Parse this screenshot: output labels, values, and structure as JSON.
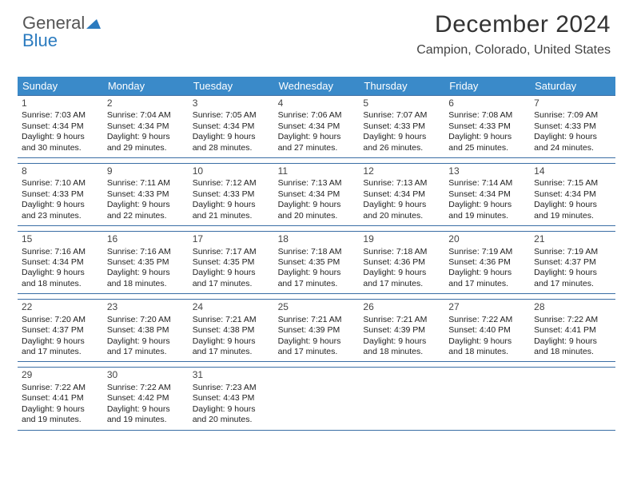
{
  "logo": {
    "text1": "General",
    "text2": "Blue"
  },
  "header": {
    "month_title": "December 2024",
    "location": "Campion, Colorado, United States"
  },
  "colors": {
    "header_bg": "#3a8ac9",
    "header_text": "#ffffff",
    "rule": "#3a6ea5",
    "body_text": "#222222",
    "logo_gray": "#555555",
    "logo_blue": "#2b7bbf"
  },
  "weekdays": [
    "Sunday",
    "Monday",
    "Tuesday",
    "Wednesday",
    "Thursday",
    "Friday",
    "Saturday"
  ],
  "days": [
    {
      "n": 1,
      "sr": "7:03 AM",
      "ss": "4:34 PM",
      "dl": "9 hours and 30 minutes."
    },
    {
      "n": 2,
      "sr": "7:04 AM",
      "ss": "4:34 PM",
      "dl": "9 hours and 29 minutes."
    },
    {
      "n": 3,
      "sr": "7:05 AM",
      "ss": "4:34 PM",
      "dl": "9 hours and 28 minutes."
    },
    {
      "n": 4,
      "sr": "7:06 AM",
      "ss": "4:34 PM",
      "dl": "9 hours and 27 minutes."
    },
    {
      "n": 5,
      "sr": "7:07 AM",
      "ss": "4:33 PM",
      "dl": "9 hours and 26 minutes."
    },
    {
      "n": 6,
      "sr": "7:08 AM",
      "ss": "4:33 PM",
      "dl": "9 hours and 25 minutes."
    },
    {
      "n": 7,
      "sr": "7:09 AM",
      "ss": "4:33 PM",
      "dl": "9 hours and 24 minutes."
    },
    {
      "n": 8,
      "sr": "7:10 AM",
      "ss": "4:33 PM",
      "dl": "9 hours and 23 minutes."
    },
    {
      "n": 9,
      "sr": "7:11 AM",
      "ss": "4:33 PM",
      "dl": "9 hours and 22 minutes."
    },
    {
      "n": 10,
      "sr": "7:12 AM",
      "ss": "4:33 PM",
      "dl": "9 hours and 21 minutes."
    },
    {
      "n": 11,
      "sr": "7:13 AM",
      "ss": "4:34 PM",
      "dl": "9 hours and 20 minutes."
    },
    {
      "n": 12,
      "sr": "7:13 AM",
      "ss": "4:34 PM",
      "dl": "9 hours and 20 minutes."
    },
    {
      "n": 13,
      "sr": "7:14 AM",
      "ss": "4:34 PM",
      "dl": "9 hours and 19 minutes."
    },
    {
      "n": 14,
      "sr": "7:15 AM",
      "ss": "4:34 PM",
      "dl": "9 hours and 19 minutes."
    },
    {
      "n": 15,
      "sr": "7:16 AM",
      "ss": "4:34 PM",
      "dl": "9 hours and 18 minutes."
    },
    {
      "n": 16,
      "sr": "7:16 AM",
      "ss": "4:35 PM",
      "dl": "9 hours and 18 minutes."
    },
    {
      "n": 17,
      "sr": "7:17 AM",
      "ss": "4:35 PM",
      "dl": "9 hours and 17 minutes."
    },
    {
      "n": 18,
      "sr": "7:18 AM",
      "ss": "4:35 PM",
      "dl": "9 hours and 17 minutes."
    },
    {
      "n": 19,
      "sr": "7:18 AM",
      "ss": "4:36 PM",
      "dl": "9 hours and 17 minutes."
    },
    {
      "n": 20,
      "sr": "7:19 AM",
      "ss": "4:36 PM",
      "dl": "9 hours and 17 minutes."
    },
    {
      "n": 21,
      "sr": "7:19 AM",
      "ss": "4:37 PM",
      "dl": "9 hours and 17 minutes."
    },
    {
      "n": 22,
      "sr": "7:20 AM",
      "ss": "4:37 PM",
      "dl": "9 hours and 17 minutes."
    },
    {
      "n": 23,
      "sr": "7:20 AM",
      "ss": "4:38 PM",
      "dl": "9 hours and 17 minutes."
    },
    {
      "n": 24,
      "sr": "7:21 AM",
      "ss": "4:38 PM",
      "dl": "9 hours and 17 minutes."
    },
    {
      "n": 25,
      "sr": "7:21 AM",
      "ss": "4:39 PM",
      "dl": "9 hours and 17 minutes."
    },
    {
      "n": 26,
      "sr": "7:21 AM",
      "ss": "4:39 PM",
      "dl": "9 hours and 18 minutes."
    },
    {
      "n": 27,
      "sr": "7:22 AM",
      "ss": "4:40 PM",
      "dl": "9 hours and 18 minutes."
    },
    {
      "n": 28,
      "sr": "7:22 AM",
      "ss": "4:41 PM",
      "dl": "9 hours and 18 minutes."
    },
    {
      "n": 29,
      "sr": "7:22 AM",
      "ss": "4:41 PM",
      "dl": "9 hours and 19 minutes."
    },
    {
      "n": 30,
      "sr": "7:22 AM",
      "ss": "4:42 PM",
      "dl": "9 hours and 19 minutes."
    },
    {
      "n": 31,
      "sr": "7:23 AM",
      "ss": "4:43 PM",
      "dl": "9 hours and 20 minutes."
    }
  ],
  "labels": {
    "sunrise": "Sunrise:",
    "sunset": "Sunset:",
    "daylight": "Daylight:"
  },
  "layout": {
    "start_weekday": 0,
    "days_in_month": 31,
    "weeks": 5
  }
}
